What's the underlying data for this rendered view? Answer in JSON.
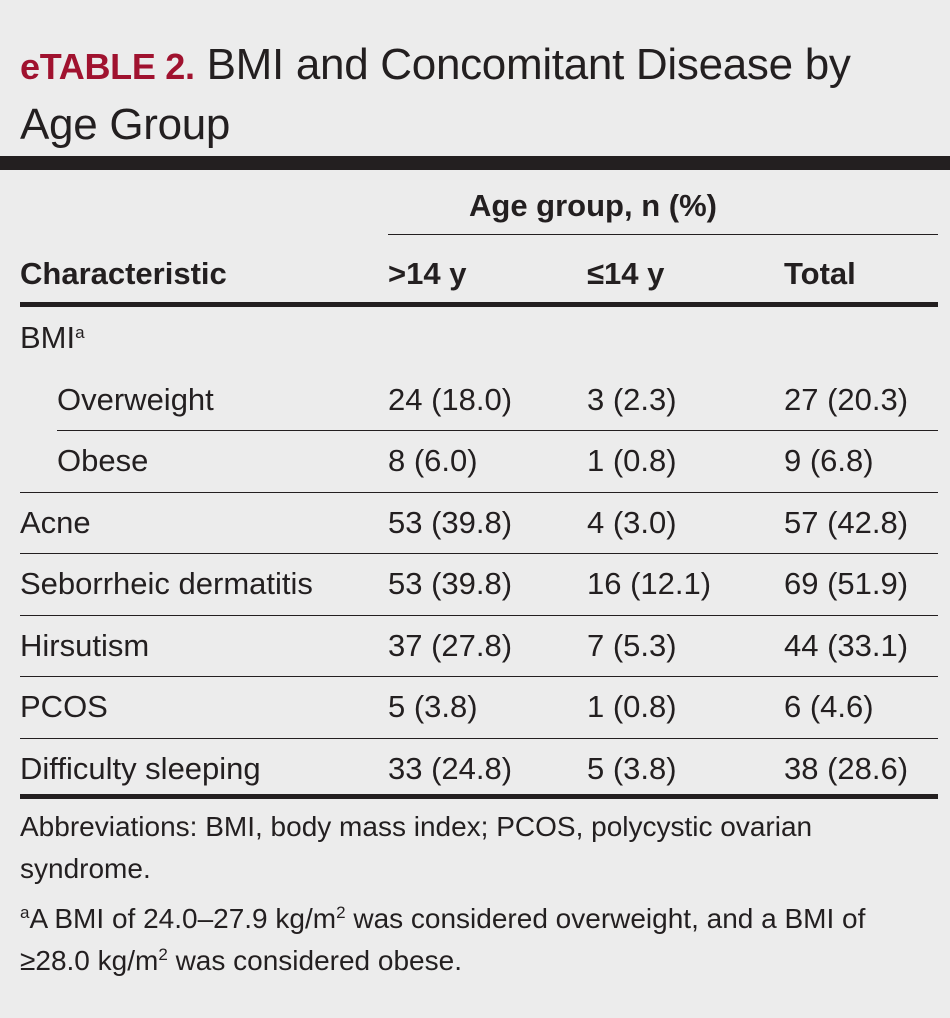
{
  "title": {
    "label": "eTABLE 2.",
    "text": "BMI and Concomitant Disease by Age Group"
  },
  "table": {
    "group_header": "Age group, n (%)",
    "columns": [
      "Characteristic",
      ">14 y",
      "≤14 y",
      "Total"
    ],
    "rows": [
      {
        "label": "BMI",
        "sup": "a",
        "indent": false,
        "values": [
          "",
          "",
          ""
        ]
      },
      {
        "label": "Overweight",
        "indent": true,
        "values": [
          "24 (18.0)",
          "3 (2.3)",
          "27 (20.3)"
        ]
      },
      {
        "label": "Obese",
        "indent": true,
        "values": [
          "8 (6.0)",
          "1 (0.8)",
          "9 (6.8)"
        ]
      },
      {
        "label": "Acne",
        "indent": false,
        "values": [
          "53 (39.8)",
          "4 (3.0)",
          "57 (42.8)"
        ]
      },
      {
        "label": "Seborrheic dermatitis",
        "indent": false,
        "values": [
          "53 (39.8)",
          "16 (12.1)",
          "69 (51.9)"
        ]
      },
      {
        "label": "Hirsutism",
        "indent": false,
        "values": [
          "37 (27.8)",
          "7 (5.3)",
          "44 (33.1)"
        ]
      },
      {
        "label": "PCOS",
        "indent": false,
        "values": [
          "5 (3.8)",
          "1 (0.8)",
          "6 (4.6)"
        ]
      },
      {
        "label": "Difficulty sleeping",
        "indent": false,
        "values": [
          "33 (24.8)",
          "5 (3.8)",
          "38 (28.6)"
        ]
      }
    ]
  },
  "footnotes": {
    "abbreviations": "Abbreviations: BMI, body mass index; PCOS, polycystic ovarian syndrome.",
    "note_marker": "a",
    "note_part1": "A BMI of 24.0–27.9 kg/m",
    "note_sup1": "2",
    "note_part2": " was considered overweight, and a BMI of ≥28.0 kg/m",
    "note_sup2": "2",
    "note_part3": " was considered obese."
  }
}
